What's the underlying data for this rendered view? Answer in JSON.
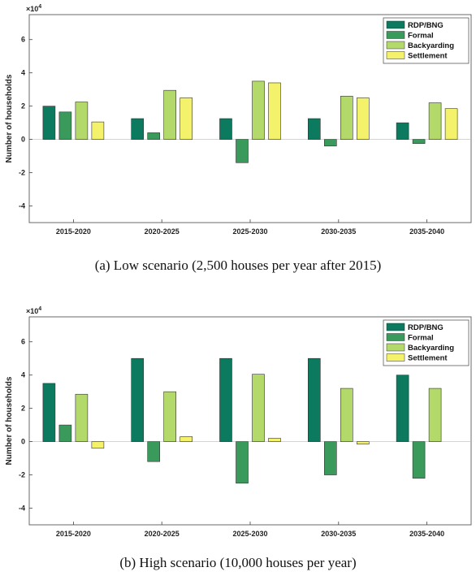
{
  "chart_data": [
    {
      "type": "bar",
      "caption": "(a) Low scenario (2,500 houses per year after 2015)",
      "ylabel": "Number of households",
      "xlabel": "",
      "multiplier_base": "×10",
      "multiplier_exp": "4",
      "ylim": [
        -5,
        7.5
      ],
      "yticks": [
        -4,
        -2,
        0,
        2,
        4,
        6
      ],
      "yticklabels": [
        "-4",
        "-2",
        "0",
        "2",
        "4",
        "6"
      ],
      "categories": [
        "2015-2020",
        "2020-2025",
        "2025-2030",
        "2030-2035",
        "2035-2040"
      ],
      "legend_position": "top-right",
      "series": [
        {
          "name": "RDP/BNG",
          "color": "#0b7a5e",
          "values": [
            2.0,
            1.25,
            1.25,
            1.25,
            1.0
          ]
        },
        {
          "name": "Formal",
          "color": "#3a9a5c",
          "values": [
            1.65,
            0.4,
            -1.4,
            -0.4,
            -0.25
          ]
        },
        {
          "name": "Backyarding",
          "color": "#b3d96a",
          "values": [
            2.25,
            2.95,
            3.5,
            2.6,
            2.2
          ]
        },
        {
          "name": "Settlement",
          "color": "#f4f26a",
          "values": [
            1.05,
            2.5,
            3.4,
            2.5,
            1.85
          ]
        }
      ]
    },
    {
      "type": "bar",
      "caption": "(b) High scenario (10,000 houses per year)",
      "ylabel": "Number of households",
      "xlabel": "",
      "multiplier_base": "×10",
      "multiplier_exp": "4",
      "ylim": [
        -5,
        7.5
      ],
      "yticks": [
        -4,
        -2,
        0,
        2,
        4,
        6
      ],
      "yticklabels": [
        "-4",
        "-2",
        "0",
        "2",
        "4",
        "6"
      ],
      "categories": [
        "2015-2020",
        "2020-2025",
        "2025-2030",
        "2030-2035",
        "2035-2040"
      ],
      "legend_position": "top-right",
      "series": [
        {
          "name": "RDP/BNG",
          "color": "#0b7a5e",
          "values": [
            3.5,
            5.0,
            5.0,
            5.0,
            4.0
          ]
        },
        {
          "name": "Formal",
          "color": "#3a9a5c",
          "values": [
            1.0,
            -1.2,
            -2.5,
            -2.0,
            -2.2
          ]
        },
        {
          "name": "Backyarding",
          "color": "#b3d96a",
          "values": [
            2.85,
            3.0,
            4.05,
            3.2,
            3.2
          ]
        },
        {
          "name": "Settlement",
          "color": "#f4f26a",
          "values": [
            -0.4,
            0.3,
            0.2,
            -0.15,
            0.0
          ]
        }
      ]
    }
  ]
}
